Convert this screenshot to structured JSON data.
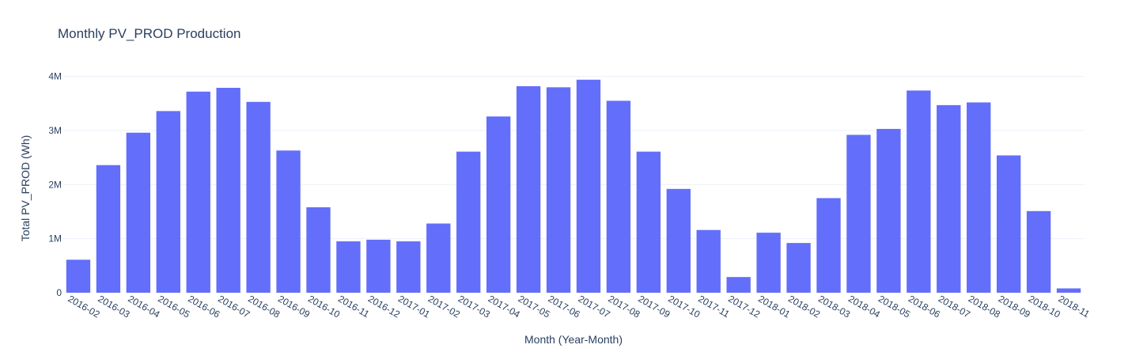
{
  "chart_data": {
    "type": "bar",
    "title": "Monthly PV_PROD Production",
    "xlabel": "Month (Year-Month)",
    "ylabel": "Total PV_PROD (Wh)",
    "ylim": [
      0,
      4200000
    ],
    "yticks": [
      {
        "value": 0,
        "label": "0"
      },
      {
        "value": 1000000,
        "label": "1M"
      },
      {
        "value": 2000000,
        "label": "2M"
      },
      {
        "value": 3000000,
        "label": "3M"
      },
      {
        "value": 4000000,
        "label": "4M"
      }
    ],
    "grid": true,
    "bar_color": "#636efa",
    "categories": [
      "2016-02",
      "2016-03",
      "2016-04",
      "2016-05",
      "2016-06",
      "2016-07",
      "2016-08",
      "2016-09",
      "2016-10",
      "2016-11",
      "2016-12",
      "2017-01",
      "2017-02",
      "2017-03",
      "2017-04",
      "2017-05",
      "2017-06",
      "2017-07",
      "2017-08",
      "2017-09",
      "2017-10",
      "2017-11",
      "2017-12",
      "2018-01",
      "2018-02",
      "2018-03",
      "2018-04",
      "2018-05",
      "2018-06",
      "2018-07",
      "2018-08",
      "2018-09",
      "2018-10",
      "2018-11"
    ],
    "values": [
      610000,
      2360000,
      2960000,
      3360000,
      3720000,
      3790000,
      3530000,
      2630000,
      1580000,
      950000,
      980000,
      950000,
      1280000,
      2610000,
      3260000,
      3820000,
      3800000,
      3940000,
      3550000,
      2610000,
      1920000,
      1160000,
      290000,
      1110000,
      920000,
      1750000,
      2920000,
      3030000,
      3740000,
      3470000,
      3520000,
      2540000,
      1510000,
      80000
    ]
  }
}
